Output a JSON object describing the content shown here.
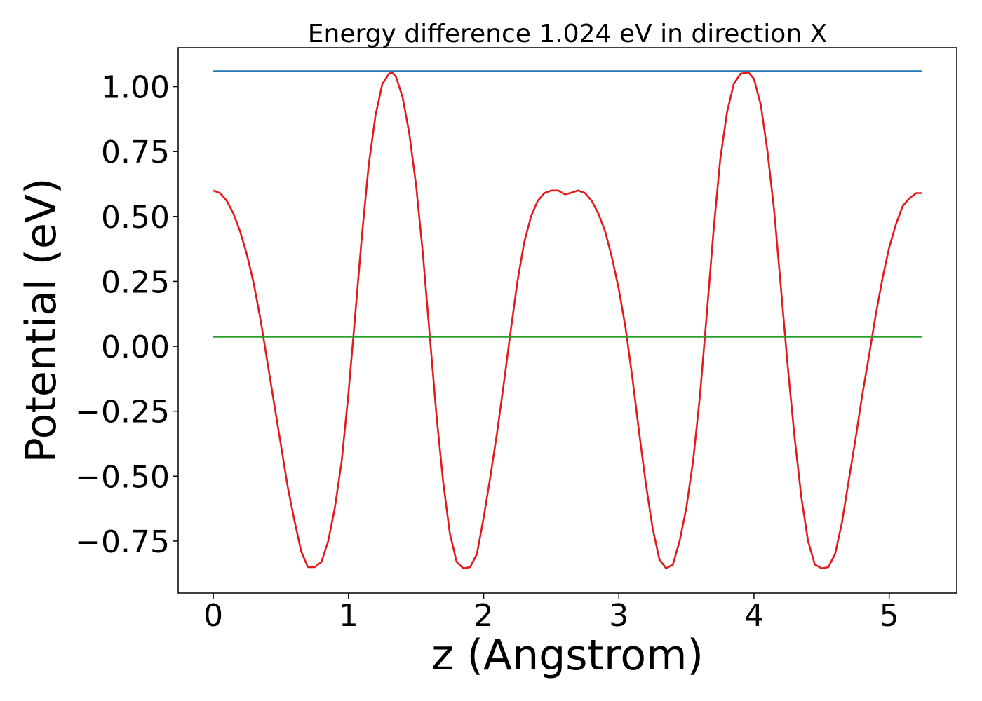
{
  "chart_data": {
    "type": "line",
    "title": "Energy difference 1.024 eV in direction X",
    "xlabel": "z (Angstrom)",
    "ylabel": "Potential (eV)",
    "xlim": [
      -0.26,
      5.5
    ],
    "ylim": [
      -0.95,
      1.15
    ],
    "xticks": [
      0,
      1,
      2,
      3,
      4,
      5
    ],
    "xtick_labels": [
      "0",
      "1",
      "2",
      "3",
      "4",
      "5"
    ],
    "yticks": [
      -0.75,
      -0.5,
      -0.25,
      0.0,
      0.25,
      0.5,
      0.75,
      1.0
    ],
    "ytick_labels": [
      "−0.75",
      "−0.50",
      "−0.25",
      "0.00",
      "0.25",
      "0.50",
      "0.75",
      "1.00"
    ],
    "grid": false,
    "legend": "none",
    "series": [
      {
        "color": "#e31a1c",
        "style": "curve",
        "x": [
          0,
          0.05,
          0.1,
          0.15,
          0.2,
          0.25,
          0.3,
          0.35,
          0.4,
          0.45,
          0.5,
          0.55,
          0.6,
          0.65,
          0.7,
          0.75,
          0.8,
          0.85,
          0.9,
          0.95,
          1.0,
          1.05,
          1.1,
          1.15,
          1.2,
          1.25,
          1.3,
          1.32,
          1.35,
          1.4,
          1.45,
          1.5,
          1.55,
          1.6,
          1.65,
          1.7,
          1.75,
          1.8,
          1.85,
          1.9,
          1.95,
          2.0,
          2.05,
          2.1,
          2.15,
          2.2,
          2.25,
          2.3,
          2.35,
          2.4,
          2.45,
          2.5,
          2.55,
          2.6,
          2.64,
          2.7,
          2.75,
          2.8,
          2.85,
          2.9,
          2.95,
          3.0,
          3.05,
          3.1,
          3.15,
          3.2,
          3.25,
          3.3,
          3.35,
          3.4,
          3.45,
          3.5,
          3.55,
          3.6,
          3.65,
          3.7,
          3.75,
          3.8,
          3.85,
          3.9,
          3.96,
          4.0,
          4.05,
          4.1,
          4.15,
          4.2,
          4.25,
          4.3,
          4.35,
          4.4,
          4.45,
          4.5,
          4.55,
          4.6,
          4.65,
          4.7,
          4.75,
          4.8,
          4.85,
          4.9,
          4.95,
          5.0,
          5.05,
          5.1,
          5.15,
          5.2,
          5.24
        ],
        "y": [
          0.6,
          0.59,
          0.56,
          0.51,
          0.44,
          0.35,
          0.24,
          0.1,
          -0.06,
          -0.22,
          -0.38,
          -0.54,
          -0.67,
          -0.79,
          -0.85,
          -0.85,
          -0.83,
          -0.75,
          -0.62,
          -0.44,
          -0.18,
          0.12,
          0.43,
          0.7,
          0.89,
          1.01,
          1.05,
          1.055,
          1.04,
          0.96,
          0.82,
          0.62,
          0.36,
          0.05,
          -0.26,
          -0.52,
          -0.72,
          -0.83,
          -0.855,
          -0.85,
          -0.8,
          -0.66,
          -0.5,
          -0.33,
          -0.14,
          0.06,
          0.25,
          0.4,
          0.5,
          0.56,
          0.59,
          0.6,
          0.6,
          0.585,
          0.59,
          0.6,
          0.59,
          0.56,
          0.51,
          0.44,
          0.34,
          0.22,
          0.07,
          -0.12,
          -0.33,
          -0.53,
          -0.7,
          -0.82,
          -0.855,
          -0.84,
          -0.75,
          -0.62,
          -0.44,
          -0.19,
          0.12,
          0.44,
          0.72,
          0.9,
          1.01,
          1.05,
          1.055,
          1.03,
          0.93,
          0.75,
          0.52,
          0.22,
          -0.08,
          -0.35,
          -0.58,
          -0.75,
          -0.84,
          -0.855,
          -0.85,
          -0.8,
          -0.68,
          -0.52,
          -0.36,
          -0.19,
          -0.04,
          0.12,
          0.26,
          0.38,
          0.47,
          0.54,
          0.57,
          0.59,
          0.59
        ]
      },
      {
        "color": "#1f77b4",
        "style": "horizontal-line",
        "x": [
          0,
          5.24
        ],
        "y": [
          1.06,
          1.06
        ]
      },
      {
        "color": "#2ca02c",
        "style": "horizontal-line",
        "x": [
          0,
          5.24
        ],
        "y": [
          0.036,
          0.036
        ]
      }
    ]
  }
}
